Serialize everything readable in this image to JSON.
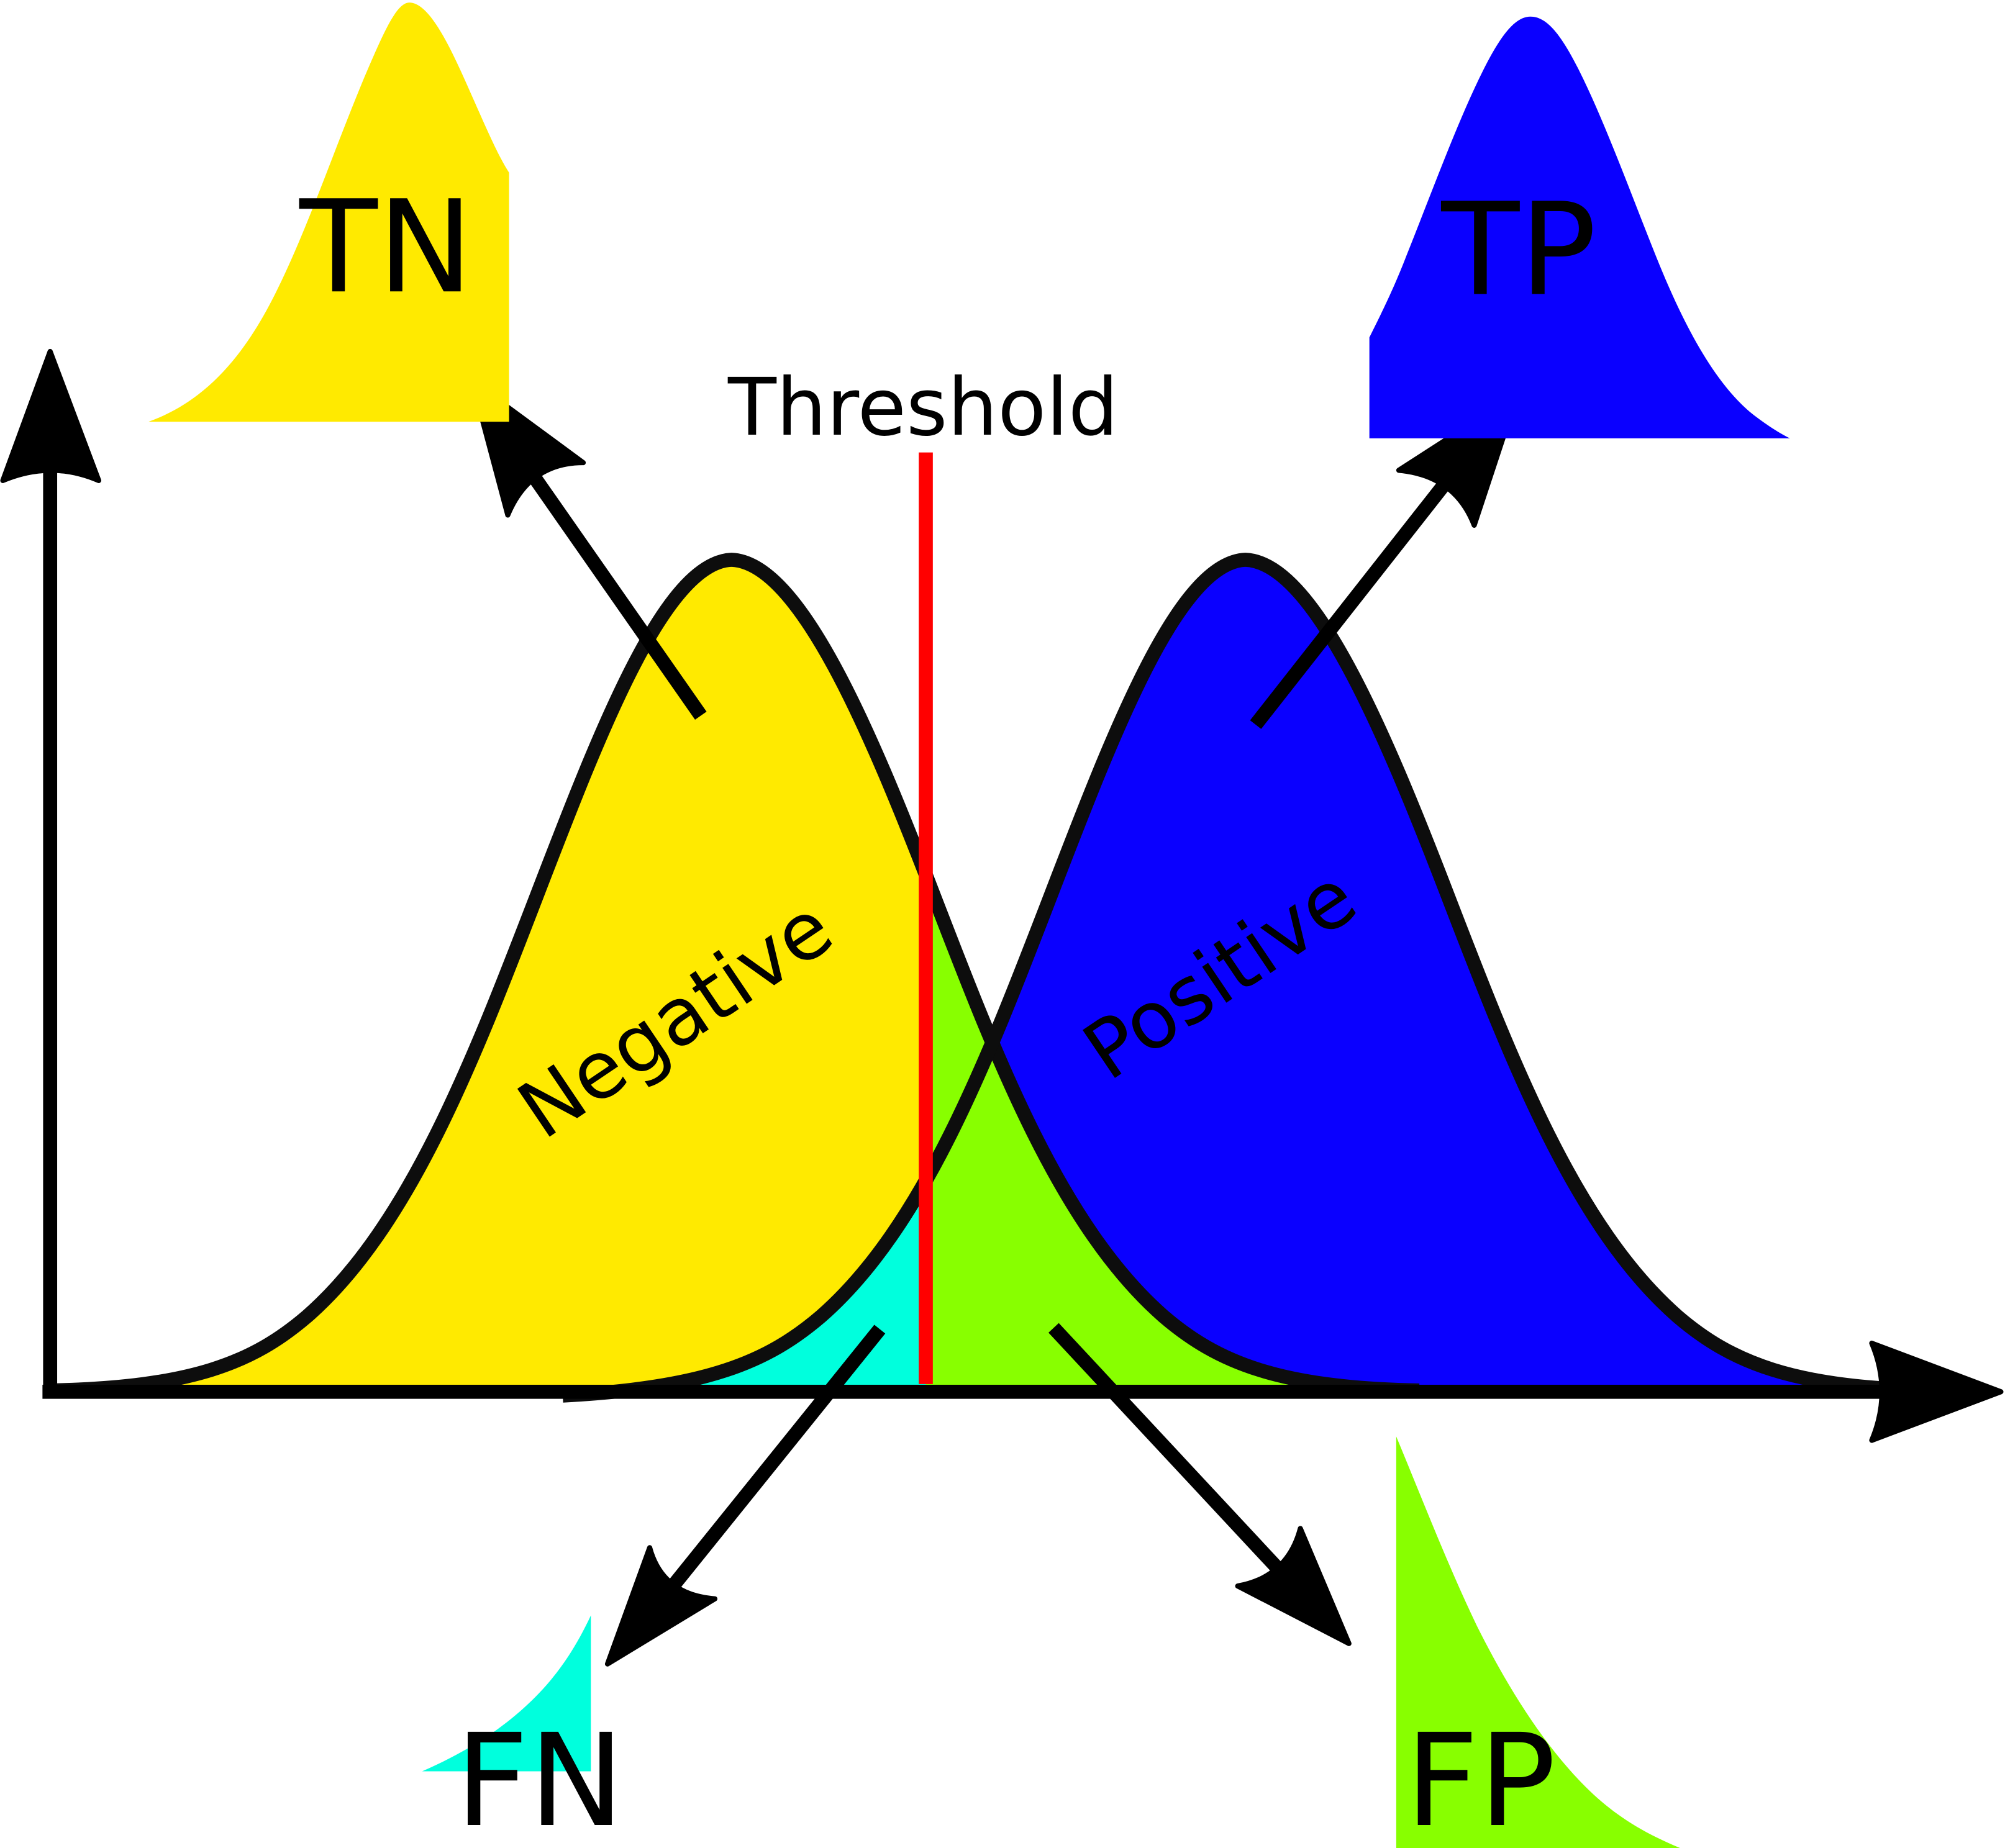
{
  "labels": {
    "threshold": "Threshold",
    "negative": "Negative",
    "positive": "Positive",
    "tn": "TN",
    "tp": "TP",
    "fn": "FN",
    "fp": "FP"
  },
  "colors": {
    "negative_fill": "#ffea00",
    "positive_fill": "#0a00ff",
    "false_negative": "#00ffdd",
    "false_positive": "#88ff00",
    "threshold_line": "#ff0000",
    "outline": "#000000"
  }
}
